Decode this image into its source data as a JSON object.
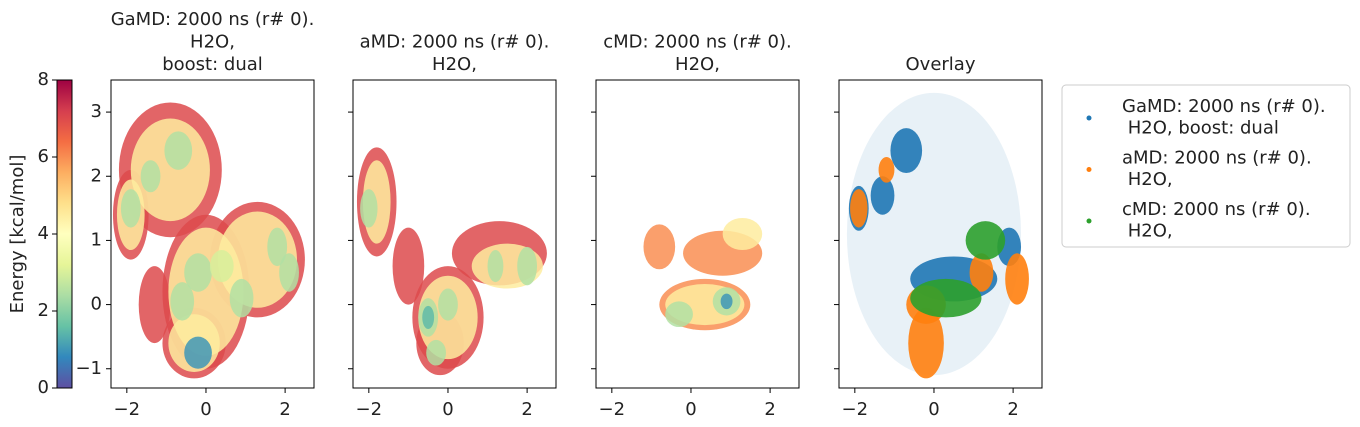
{
  "chart_data": {
    "type": "density-panels",
    "xlim": [
      -2.4,
      2.73
    ],
    "ylim": [
      -1.3,
      3.5
    ],
    "xticks": [
      {
        "value": -2,
        "label": "−2"
      },
      0,
      2
    ],
    "yticks": [
      {
        "value": -1,
        "label": "−1"
      },
      0,
      1,
      2,
      3
    ],
    "colorbar": {
      "label": "Energy [kcal/mol]",
      "clim": [
        0,
        8
      ],
      "ticks": [
        0,
        2,
        4,
        6,
        8
      ],
      "colormap": "Spectral_r"
    },
    "panels": [
      {
        "title": [
          "GaMD: 2000 ns (r# 0).",
          "H2O,",
          "boost: dual"
        ],
        "clusters": {
          "x": [
            -0.9,
            -1.9,
            0.0,
            1.3,
            -0.3,
            -1.3,
            -0.9,
            -1.9,
            0.0,
            1.3,
            -0.3,
            -0.7,
            -1.4,
            -1.9,
            -0.2,
            -0.6,
            0.9,
            1.8,
            2.1,
            0.4,
            -0.2
          ],
          "y": [
            2.1,
            1.4,
            0.2,
            0.7,
            -0.6,
            0.0,
            2.1,
            1.4,
            0.2,
            0.7,
            -0.6,
            2.4,
            2.0,
            1.5,
            0.5,
            0.05,
            0.1,
            0.9,
            0.5,
            0.6,
            -0.75
          ],
          "rx": [
            1.3,
            0.45,
            1.1,
            1.2,
            0.8,
            0.4,
            1.0,
            0.35,
            0.95,
            1.0,
            0.65,
            0.35,
            0.25,
            0.25,
            0.35,
            0.3,
            0.3,
            0.25,
            0.25,
            0.3,
            0.35
          ],
          "ry": [
            1.05,
            0.7,
            1.2,
            0.9,
            0.55,
            0.6,
            0.8,
            0.55,
            1.0,
            0.75,
            0.45,
            0.3,
            0.25,
            0.3,
            0.3,
            0.3,
            0.3,
            0.3,
            0.3,
            0.25,
            0.25
          ],
          "energy": [
            7,
            7,
            7,
            7,
            7,
            7,
            4.5,
            4.5,
            4.5,
            4.5,
            4.5,
            2.5,
            2.5,
            2.5,
            2.5,
            2.5,
            2.5,
            2.5,
            2.5,
            3,
            1
          ]
        }
      },
      {
        "title": [
          "aMD: 2000 ns (r# 0).",
          "H2O,"
        ],
        "clusters": {
          "x": [
            -1.8,
            -1.0,
            0.0,
            1.3,
            -0.2,
            -1.8,
            0.0,
            1.5,
            -2.0,
            -0.5,
            0.0,
            -0.3,
            1.2,
            2.0,
            -0.5
          ],
          "y": [
            1.6,
            0.6,
            -0.2,
            0.8,
            -0.6,
            1.6,
            -0.2,
            0.6,
            1.5,
            -0.2,
            0.0,
            -0.75,
            0.6,
            0.6,
            -0.2
          ],
          "rx": [
            0.5,
            0.4,
            0.9,
            1.2,
            0.6,
            0.35,
            0.75,
            0.9,
            0.22,
            0.25,
            0.25,
            0.25,
            0.2,
            0.25,
            0.15
          ],
          "ry": [
            0.85,
            0.6,
            0.8,
            0.5,
            0.5,
            0.65,
            0.65,
            0.35,
            0.3,
            0.3,
            0.25,
            0.2,
            0.25,
            0.3,
            0.18
          ],
          "energy": [
            7,
            7,
            7,
            7,
            7,
            4.5,
            4.5,
            4.5,
            2.5,
            2.5,
            2.5,
            2.5,
            2.5,
            2.5,
            1.5
          ]
        }
      },
      {
        "title": [
          "cMD: 2000 ns (r# 0).",
          "H2O,"
        ],
        "clusters": {
          "x": [
            -0.8,
            0.8,
            0.35,
            1.3,
            0.35,
            -0.3,
            0.9,
            0.9
          ],
          "y": [
            0.9,
            0.8,
            0.0,
            1.1,
            0.0,
            -0.15,
            0.05,
            0.05
          ],
          "rx": [
            0.4,
            1.0,
            1.15,
            0.5,
            1.0,
            0.35,
            0.35,
            0.15
          ],
          "ry": [
            0.35,
            0.35,
            0.4,
            0.25,
            0.32,
            0.2,
            0.22,
            0.12
          ],
          "energy": [
            6,
            6,
            6,
            4.5,
            4.5,
            2.5,
            2.5,
            1
          ]
        }
      },
      {
        "title": [
          "Overlay"
        ],
        "series": [
          {
            "name": [
              "GaMD: 2000 ns (r# 0).",
              " H2O, boost: dual"
            ],
            "color": "#1f77b4",
            "clusters": {
              "x": [
                0.0,
                -0.7,
                -1.9,
                0.5,
                1.9,
                -1.3
              ],
              "y": [
                1.1,
                2.4,
                1.5,
                0.4,
                0.9,
                1.7
              ],
              "rx": [
                2.2,
                0.4,
                0.25,
                1.1,
                0.3,
                0.3
              ],
              "ry": [
                2.2,
                0.35,
                0.35,
                0.35,
                0.3,
                0.3
              ],
              "alpha": [
                0.1,
                0.9,
                0.9,
                0.9,
                0.9,
                0.9
              ]
            }
          },
          {
            "name": [
              "aMD: 2000 ns (r# 0).",
              " H2O,"
            ],
            "color": "#ff7f0e",
            "clusters": {
              "x": [
                -0.2,
                -1.9,
                -1.2,
                -0.2,
                2.1,
                1.2
              ],
              "y": [
                -0.6,
                1.5,
                2.1,
                0.0,
                0.4,
                0.5
              ],
              "rx": [
                0.45,
                0.22,
                0.2,
                0.5,
                0.3,
                0.3
              ],
              "ry": [
                0.55,
                0.3,
                0.2,
                0.3,
                0.4,
                0.3
              ],
              "alpha": [
                0.9,
                0.9,
                0.9,
                0.9,
                0.9,
                0.9
              ]
            }
          },
          {
            "name": [
              "cMD: 2000 ns (r# 0).",
              " H2O,"
            ],
            "color": "#2ca02c",
            "clusters": {
              "x": [
                0.3,
                1.3
              ],
              "y": [
                0.1,
                1.0
              ],
              "rx": [
                0.9,
                0.5
              ],
              "ry": [
                0.3,
                0.3
              ],
              "alpha": [
                0.9,
                0.9
              ]
            }
          }
        ]
      }
    ]
  }
}
